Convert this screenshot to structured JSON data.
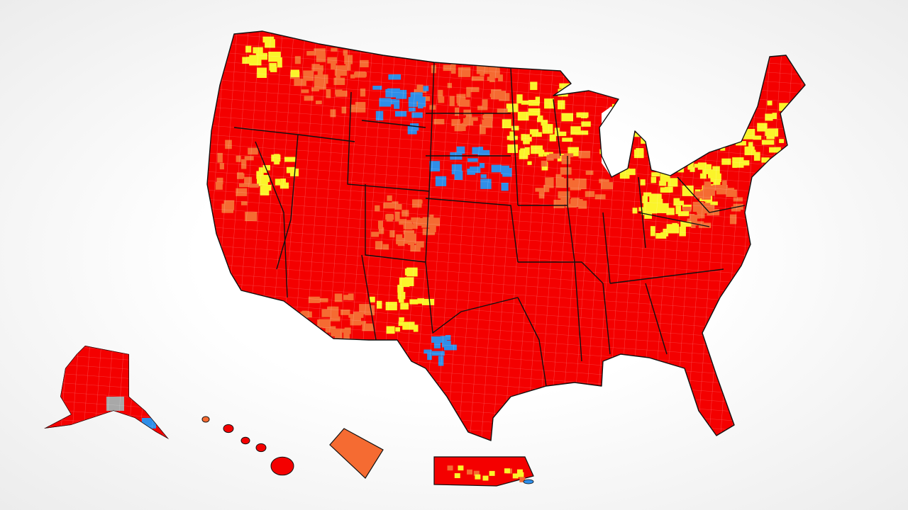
{
  "map": {
    "colors": [
      "#f40000",
      "#f56b32",
      "#fbf42a",
      "#2f8ee8",
      "#a8a8a8"
    ]
  }
}
